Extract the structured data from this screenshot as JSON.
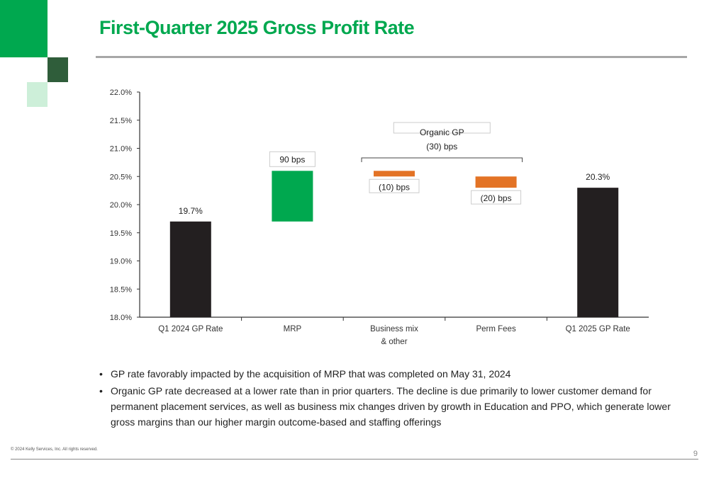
{
  "page": {
    "title": "First-Quarter 2025 Gross Profit Rate",
    "copyright": "© 2024 Kelly Services, Inc. All rights reserved.",
    "page_number": "9"
  },
  "bullets": [
    "GP rate favorably impacted by the acquisition of MRP that was completed on May 31, 2024",
    "Organic GP rate decreased at a lower rate than in prior quarters.  The decline is due primarily to lower customer demand for permanent placement services, as well as business mix changes driven by growth in Education and PPO, which generate lower gross margins than our higher margin outcome-based and staffing offerings"
  ],
  "colors": {
    "brand_green": "#00a84f",
    "dark_green": "#2f5d3a",
    "light_green": "#cdefd9",
    "total_bar": "#231f20",
    "increase_bar": "#00a84f",
    "decrease_bar": "#e37325"
  },
  "chart_data": {
    "type": "waterfall",
    "title": "",
    "xlabel": "",
    "ylabel": "",
    "ylim": [
      18.0,
      22.0
    ],
    "y_ticks": [
      "18.0%",
      "18.5%",
      "19.0%",
      "19.5%",
      "20.0%",
      "20.5%",
      "21.0%",
      "21.5%",
      "22.0%"
    ],
    "grid": false,
    "categories": [
      "Q1 2024 GP Rate",
      "MRP",
      "Business mix\n& other",
      "Perm Fees",
      "Q1 2025 GP Rate"
    ],
    "bars": [
      {
        "category": "Q1 2024 GP Rate",
        "kind": "total",
        "start": 18.0,
        "end": 19.7,
        "label": "19.7%"
      },
      {
        "category": "MRP",
        "kind": "increase",
        "start": 19.7,
        "end": 20.6,
        "label": "90 bps"
      },
      {
        "category": "Business mix\n& other",
        "kind": "decrease",
        "start": 20.6,
        "end": 20.5,
        "label": "(10) bps"
      },
      {
        "category": "Perm Fees",
        "kind": "decrease",
        "start": 20.5,
        "end": 20.3,
        "label": "(20) bps"
      },
      {
        "category": "Q1 2025 GP Rate",
        "kind": "total",
        "start": 18.0,
        "end": 20.3,
        "label": "20.3%"
      }
    ],
    "annotation": {
      "line1": "Organic GP",
      "line2": "(30) bps",
      "spans": [
        "Business mix\n& other",
        "Perm Fees"
      ]
    }
  }
}
